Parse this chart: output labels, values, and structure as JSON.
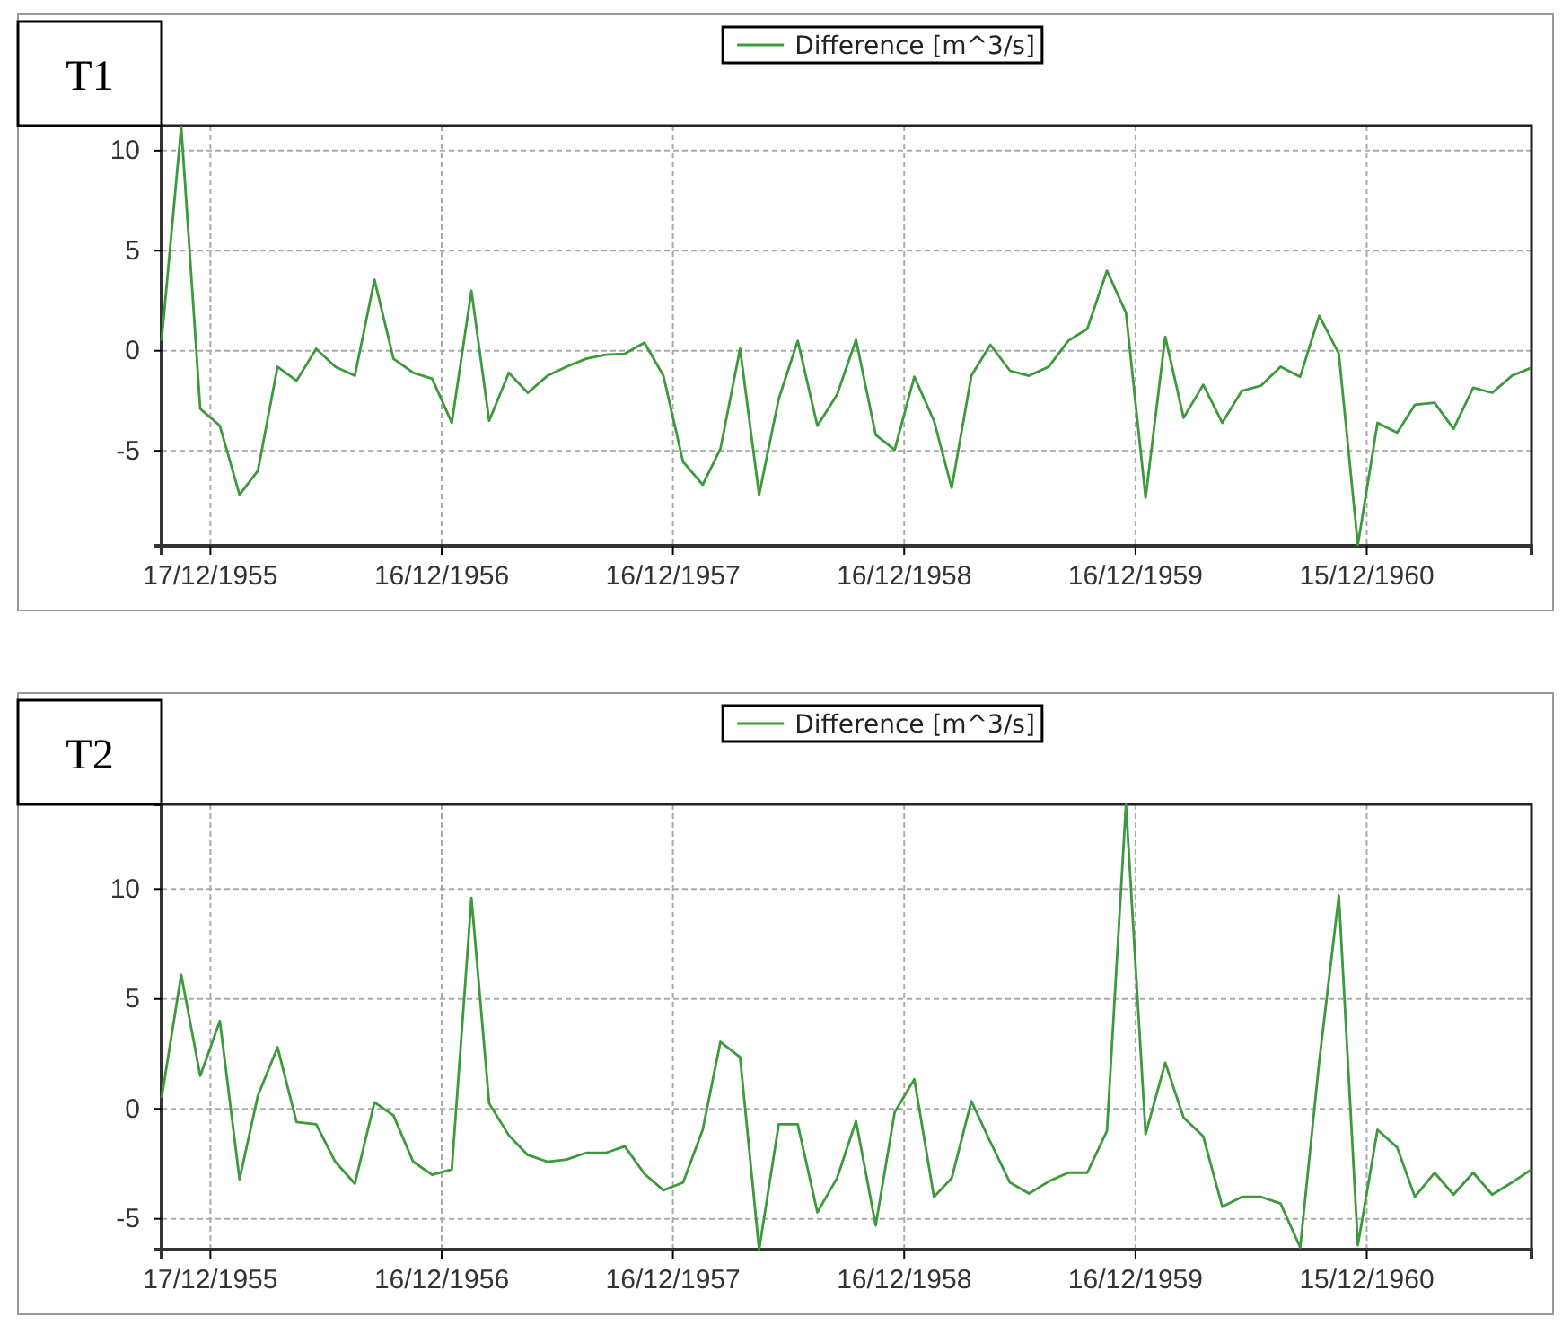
{
  "chart_data": [
    {
      "type": "line",
      "title": "T1",
      "legend": "top",
      "grid": true,
      "line_style": "solid",
      "xlim": [
        "1955-10",
        "1961-09"
      ],
      "ylim": [
        -9.75,
        11.25
      ],
      "yticks": [
        10,
        5,
        0,
        -5
      ],
      "xticks": [
        {
          "value": "1955-12-17",
          "label": "17/12/1955"
        },
        {
          "value": "1956-12-16",
          "label": "16/12/1956"
        },
        {
          "value": "1957-12-16",
          "label": "16/12/1957"
        },
        {
          "value": "1958-12-16",
          "label": "16/12/1958"
        },
        {
          "value": "1959-12-16",
          "label": "16/12/1959"
        },
        {
          "value": "1960-12-15",
          "label": "15/12/1960"
        }
      ],
      "x": [
        "1955-10",
        "1955-11",
        "1955-12",
        "1956-01",
        "1956-02",
        "1956-03",
        "1956-04",
        "1956-05",
        "1956-06",
        "1956-07",
        "1956-08",
        "1956-09",
        "1956-10",
        "1956-11",
        "1956-12",
        "1957-01",
        "1957-02",
        "1957-03",
        "1957-04",
        "1957-05",
        "1957-06",
        "1957-07",
        "1957-08",
        "1957-09",
        "1957-10",
        "1957-11",
        "1957-12",
        "1958-01",
        "1958-02",
        "1958-03",
        "1958-04",
        "1958-05",
        "1958-06",
        "1958-07",
        "1958-08",
        "1958-09",
        "1958-10",
        "1958-11",
        "1958-12",
        "1959-01",
        "1959-02",
        "1959-03",
        "1959-04",
        "1959-05",
        "1959-06",
        "1959-07",
        "1959-08",
        "1959-09",
        "1959-10",
        "1959-11",
        "1959-12",
        "1960-01",
        "1960-02",
        "1960-03",
        "1960-04",
        "1960-05",
        "1960-06",
        "1960-07",
        "1960-08",
        "1960-09",
        "1960-10",
        "1960-11",
        "1960-12",
        "1961-01",
        "1961-02",
        "1961-03",
        "1961-04",
        "1961-05",
        "1961-06",
        "1961-07",
        "1961-08",
        "1961-09"
      ],
      "series": [
        {
          "name": "Difference [m^3/s]",
          "color": "#3c9a3c",
          "values": [
            0.5,
            11.2,
            -2.9,
            -3.75,
            -7.2,
            -6.0,
            -0.8,
            -1.5,
            0.1,
            -0.8,
            -1.25,
            3.55,
            -0.4,
            -1.1,
            -1.4,
            -3.6,
            3.0,
            -3.5,
            -1.1,
            -2.1,
            -1.25,
            -0.8,
            -0.4,
            -0.2,
            -0.15,
            0.4,
            -1.25,
            -5.55,
            -6.7,
            -4.9,
            0.1,
            -7.2,
            -2.4,
            0.5,
            -3.75,
            -2.2,
            0.55,
            -4.2,
            -4.95,
            -1.3,
            -3.5,
            -6.85,
            -1.25,
            0.3,
            -1.0,
            -1.25,
            -0.8,
            0.5,
            1.1,
            4.0,
            1.9,
            -7.35,
            0.7,
            -3.35,
            -1.7,
            -3.6,
            -2.0,
            -1.75,
            -0.8,
            -1.3,
            1.75,
            -0.15,
            -9.7,
            -3.6,
            -4.1,
            -2.7,
            -2.6,
            -3.9,
            -1.85,
            -2.1,
            -1.25,
            -0.85
          ]
        }
      ]
    },
    {
      "type": "line",
      "title": "T2",
      "legend": "top",
      "grid": true,
      "line_style": "solid",
      "xlim": [
        "1955-10",
        "1961-09"
      ],
      "ylim": [
        -6.4,
        13.85
      ],
      "yticks": [
        10,
        5,
        0,
        -5
      ],
      "xticks": [
        {
          "value": "1955-12-17",
          "label": "17/12/1955"
        },
        {
          "value": "1956-12-16",
          "label": "16/12/1956"
        },
        {
          "value": "1957-12-16",
          "label": "16/12/1957"
        },
        {
          "value": "1958-12-16",
          "label": "16/12/1958"
        },
        {
          "value": "1959-12-16",
          "label": "16/12/1959"
        },
        {
          "value": "1960-12-15",
          "label": "15/12/1960"
        }
      ],
      "x": [
        "1955-10",
        "1955-11",
        "1955-12",
        "1956-01",
        "1956-02",
        "1956-03",
        "1956-04",
        "1956-05",
        "1956-06",
        "1956-07",
        "1956-08",
        "1956-09",
        "1956-10",
        "1956-11",
        "1956-12",
        "1957-01",
        "1957-02",
        "1957-03",
        "1957-04",
        "1957-05",
        "1957-06",
        "1957-07",
        "1957-08",
        "1957-09",
        "1957-10",
        "1957-11",
        "1957-12",
        "1958-01",
        "1958-02",
        "1958-03",
        "1958-04",
        "1958-05",
        "1958-06",
        "1958-07",
        "1958-08",
        "1958-09",
        "1958-10",
        "1958-11",
        "1958-12",
        "1959-01",
        "1959-02",
        "1959-03",
        "1959-04",
        "1959-05",
        "1959-06",
        "1959-07",
        "1959-08",
        "1959-09",
        "1959-10",
        "1959-11",
        "1959-12",
        "1960-01",
        "1960-02",
        "1960-03",
        "1960-04",
        "1960-05",
        "1960-06",
        "1960-07",
        "1960-08",
        "1960-09",
        "1960-10",
        "1960-11",
        "1960-12",
        "1961-01",
        "1961-02",
        "1961-03",
        "1961-04",
        "1961-05",
        "1961-06",
        "1961-07",
        "1961-08",
        "1961-09"
      ],
      "series": [
        {
          "name": "Difference [m^3/s]",
          "color": "#3c9a3c",
          "values": [
            0.5,
            6.1,
            1.5,
            4.0,
            -3.2,
            0.6,
            2.8,
            -0.6,
            -0.7,
            -2.4,
            -3.4,
            0.3,
            -0.3,
            -2.4,
            -3.0,
            -2.75,
            9.6,
            0.25,
            -1.2,
            -2.1,
            -2.4,
            -2.3,
            -2.0,
            -2.0,
            -1.7,
            -2.95,
            -3.7,
            -3.35,
            -0.95,
            3.05,
            2.35,
            -6.4,
            -0.7,
            -0.7,
            -4.7,
            -3.15,
            -0.55,
            -5.3,
            -0.15,
            1.35,
            -4.0,
            -3.15,
            0.35,
            -1.5,
            -3.35,
            -3.85,
            -3.3,
            -2.9,
            -2.9,
            -1.0,
            13.85,
            -1.15,
            2.1,
            -0.4,
            -1.25,
            -4.45,
            -4.0,
            -4.0,
            -4.3,
            -6.3,
            2.15,
            9.7,
            -6.2,
            -0.95,
            -1.75,
            -4.0,
            -2.9,
            -3.9,
            -2.9,
            -3.9,
            -3.35,
            -2.75
          ]
        }
      ]
    }
  ]
}
